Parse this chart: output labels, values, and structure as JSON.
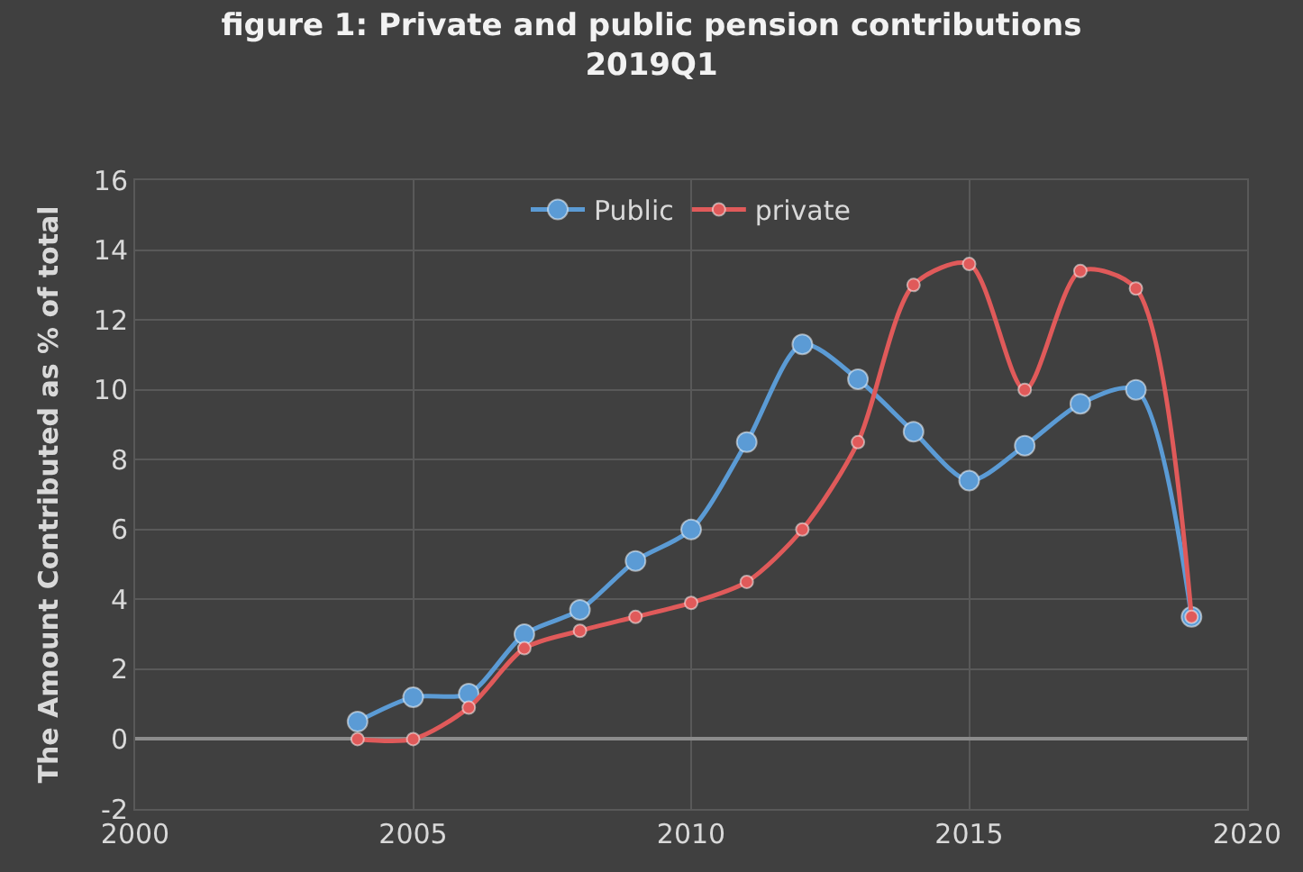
{
  "chart_data": {
    "type": "line",
    "title": "figure 1: Private and public pension contributions\n2019Q1",
    "ylabel": "The Amount Contributed as % of total",
    "x": [
      2004,
      2005,
      2006,
      2007,
      2008,
      2009,
      2010,
      2011,
      2012,
      2013,
      2014,
      2015,
      2016,
      2017,
      2018,
      2019
    ],
    "series": [
      {
        "name": "Public",
        "color": "#5b9bd5",
        "values": [
          0.5,
          1.2,
          1.3,
          3.0,
          3.7,
          5.1,
          6.0,
          8.5,
          11.3,
          10.3,
          8.8,
          7.4,
          8.4,
          9.6,
          10.0,
          3.5
        ]
      },
      {
        "name": "private",
        "color": "#e05a5a",
        "values": [
          0.0,
          0.0,
          0.9,
          2.6,
          3.1,
          3.5,
          3.9,
          4.5,
          6.0,
          8.5,
          13.0,
          13.6,
          10.0,
          13.4,
          12.9,
          3.5
        ]
      }
    ],
    "xlim": [
      2000,
      2020
    ],
    "xticks": [
      2000,
      2005,
      2010,
      2015,
      2020
    ],
    "ylim": [
      -2,
      16
    ],
    "yticks": [
      -2,
      0,
      2,
      4,
      6,
      8,
      10,
      12,
      14,
      16
    ],
    "grid": true,
    "legend": "top",
    "marker": "circle",
    "line_style": "solid"
  }
}
